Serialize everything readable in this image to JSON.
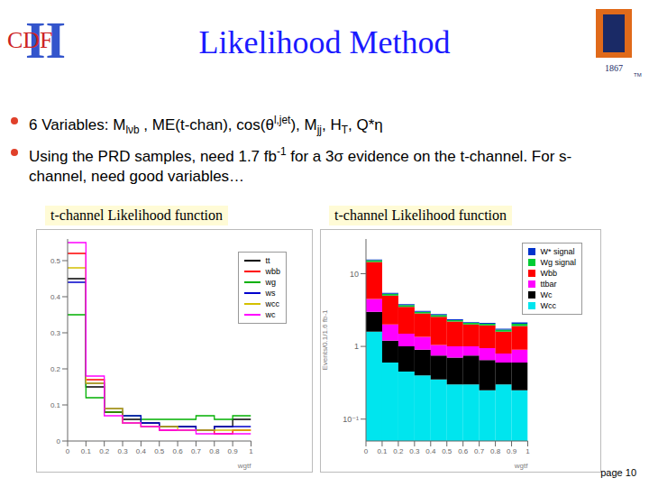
{
  "title": "Likelihood Method",
  "logos": {
    "left": "CDF",
    "left_mark": "II",
    "right_year": "1867",
    "right_tm": "TM"
  },
  "bullets": [
    [
      {
        "text": "6 Variables: M"
      },
      {
        "sub": "lνb"
      },
      {
        "text": " , ME(t-chan), cos(θ"
      },
      {
        "sup": "l,jet"
      },
      {
        "text": "), M"
      },
      {
        "sub": "jj"
      },
      {
        "text": ", H"
      },
      {
        "sub": "T"
      },
      {
        "text": ", Q*η"
      }
    ],
    [
      {
        "text": "Using the PRD samples, need 1.7 fb"
      },
      {
        "sup": "-1"
      },
      {
        "text": " for a 3σ evidence on the t-channel. For s-channel, need good variables…"
      }
    ]
  ],
  "page": "page 10",
  "chart_data": [
    {
      "type": "line",
      "line_style": "step",
      "title": "t-channel Likelihood function",
      "x_label": "wgtf",
      "bins": [
        0,
        0.1,
        0.2,
        0.3,
        0.4,
        0.5,
        0.6,
        0.7,
        0.8,
        0.9,
        1
      ],
      "xlim": [
        0,
        1
      ],
      "xticks": [
        0,
        0.1,
        0.2,
        0.3,
        0.4,
        0.5,
        0.6,
        0.7,
        0.8,
        0.9,
        1
      ],
      "ylim": [
        0,
        0.56
      ],
      "yticks": [
        0,
        0.1,
        0.2,
        0.3,
        0.4,
        0.5
      ],
      "legend": "upper right",
      "series": [
        {
          "name": "tt",
          "color": "#000000",
          "values": [
            0.45,
            0.15,
            0.08,
            0.06,
            0.05,
            0.04,
            0.04,
            0.03,
            0.04,
            0.06
          ]
        },
        {
          "name": "wbb",
          "color": "#ff0000",
          "values": [
            0.52,
            0.17,
            0.08,
            0.05,
            0.04,
            0.03,
            0.03,
            0.03,
            0.02,
            0.03
          ]
        },
        {
          "name": "wg",
          "color": "#00b000",
          "values": [
            0.35,
            0.12,
            0.08,
            0.07,
            0.06,
            0.06,
            0.06,
            0.07,
            0.06,
            0.07
          ]
        },
        {
          "name": "ws",
          "color": "#0000cc",
          "values": [
            0.44,
            0.16,
            0.09,
            0.07,
            0.05,
            0.04,
            0.04,
            0.03,
            0.04,
            0.04
          ]
        },
        {
          "name": "wcc",
          "color": "#d4c000",
          "values": [
            0.48,
            0.16,
            0.09,
            0.05,
            0.04,
            0.04,
            0.03,
            0.03,
            0.03,
            0.03
          ]
        },
        {
          "name": "wc",
          "color": "#ff00ff",
          "values": [
            0.55,
            0.18,
            0.07,
            0.05,
            0.04,
            0.03,
            0.03,
            0.02,
            0.02,
            0.02
          ]
        }
      ]
    },
    {
      "type": "bar",
      "stacked": true,
      "log": "y",
      "title": "t-channel Likelihood function",
      "x_label": "wgtf",
      "y_label": "Events/0.1/1.6 fb-1",
      "bins": [
        0,
        0.1,
        0.2,
        0.3,
        0.4,
        0.5,
        0.6,
        0.7,
        0.8,
        0.9,
        1
      ],
      "xlim": [
        0,
        1
      ],
      "xticks": [
        0,
        0.1,
        0.2,
        0.3,
        0.4,
        0.5,
        0.6,
        0.7,
        0.8,
        0.9,
        1
      ],
      "ylim": [
        0.05,
        30
      ],
      "yticks": [
        {
          "value": 0.1,
          "label": "10⁻¹"
        },
        1,
        10
      ],
      "legend": "upper right",
      "series": [
        {
          "name": "W* signal",
          "color": "#0033cc",
          "values": [
            0.4,
            0.15,
            0.1,
            0.08,
            0.08,
            0.06,
            0.06,
            0.05,
            0.05,
            0.08
          ]
        },
        {
          "name": "Wg signal",
          "color": "#00cc33",
          "values": [
            0.8,
            0.3,
            0.2,
            0.15,
            0.15,
            0.1,
            0.1,
            0.1,
            0.1,
            0.15
          ]
        },
        {
          "name": "Wbb",
          "color": "#ff0000",
          "values": [
            10,
            3,
            2,
            1.5,
            1.5,
            1.2,
            1,
            1,
            0.8,
            1
          ]
        },
        {
          "name": "ttbar",
          "color": "#ff00ff",
          "values": [
            1.5,
            0.8,
            0.5,
            0.45,
            0.3,
            0.3,
            0.25,
            0.3,
            0.2,
            0.3
          ]
        },
        {
          "name": "Wc",
          "color": "#000000",
          "values": [
            1.4,
            0.6,
            0.55,
            0.5,
            0.4,
            0.4,
            0.45,
            0.4,
            0.3,
            0.35
          ]
        },
        {
          "name": "Wcc",
          "color": "#00e5ee",
          "values": [
            1.6,
            0.6,
            0.45,
            0.4,
            0.35,
            0.3,
            0.3,
            0.25,
            0.3,
            0.25
          ]
        }
      ]
    }
  ]
}
